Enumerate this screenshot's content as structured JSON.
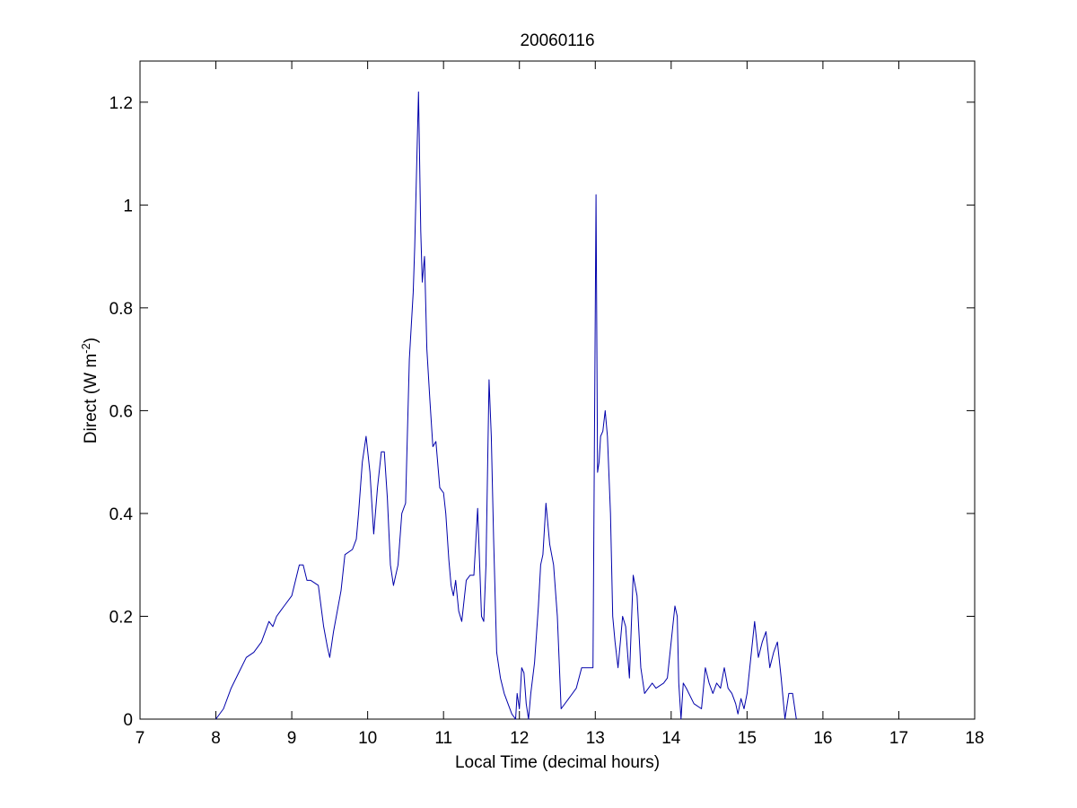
{
  "chart_data": {
    "type": "line",
    "title": "20060116",
    "xlabel": "Local Time (decimal hours)",
    "ylabel_parts": {
      "before": "Direct (W m",
      "sup": "-2",
      "after": ")"
    },
    "xlim": [
      7,
      18
    ],
    "ylim": [
      0,
      1.28
    ],
    "xticks": [
      7,
      8,
      9,
      10,
      11,
      12,
      13,
      14,
      15,
      16,
      17,
      18
    ],
    "yticks": [
      0,
      0.2,
      0.4,
      0.6,
      0.8,
      1,
      1.2
    ],
    "ytick_labels": [
      "0",
      "0.2",
      "0.4",
      "0.6",
      "0.8",
      "1",
      "1.2"
    ],
    "grid": false,
    "line_color": "#0000aa",
    "series": [
      {
        "x": [
          8.0,
          8.1,
          8.2,
          8.3,
          8.4,
          8.5,
          8.6,
          8.7,
          8.75,
          8.8,
          8.85,
          8.9,
          9.0,
          9.1,
          9.15,
          9.2,
          9.25,
          9.35,
          9.42,
          9.47,
          9.5,
          9.55,
          9.6,
          9.65,
          9.7,
          9.8,
          9.85,
          9.88,
          9.93,
          9.98,
          10.03,
          10.08,
          10.13,
          10.18,
          10.22,
          10.26,
          10.3,
          10.34,
          10.4,
          10.45,
          10.5,
          10.55,
          10.6,
          10.62,
          10.65,
          10.67,
          10.7,
          10.72,
          10.75,
          10.78,
          10.82,
          10.86,
          10.9,
          10.95,
          11.0,
          11.03,
          11.07,
          11.1,
          11.13,
          11.16,
          11.2,
          11.24,
          11.27,
          11.3,
          11.35,
          11.4,
          11.45,
          11.5,
          11.53,
          11.56,
          11.6,
          11.63,
          11.66,
          11.7,
          11.75,
          11.8,
          11.85,
          11.9,
          11.95,
          11.97,
          12.0,
          12.03,
          12.06,
          12.09,
          12.12,
          12.15,
          12.2,
          12.25,
          12.28,
          12.31,
          12.35,
          12.4,
          12.45,
          12.5,
          12.55,
          12.65,
          12.75,
          12.82,
          12.9,
          12.97,
          13.01,
          13.03,
          13.05,
          13.07,
          13.1,
          13.13,
          13.16,
          13.2,
          13.23,
          13.26,
          13.3,
          13.33,
          13.36,
          13.4,
          13.45,
          13.5,
          13.55,
          13.6,
          13.65,
          13.7,
          13.75,
          13.8,
          13.9,
          13.95,
          14.0,
          14.05,
          14.08,
          14.1,
          14.13,
          14.16,
          14.2,
          14.3,
          14.4,
          14.45,
          14.5,
          14.55,
          14.6,
          14.65,
          14.7,
          14.75,
          14.8,
          14.85,
          14.88,
          14.92,
          14.96,
          15.0,
          15.05,
          15.1,
          15.15,
          15.2,
          15.25,
          15.3,
          15.35,
          15.4,
          15.45,
          15.5,
          15.55,
          15.6,
          15.65
        ],
        "y": [
          0.0,
          0.02,
          0.06,
          0.09,
          0.12,
          0.13,
          0.15,
          0.19,
          0.18,
          0.2,
          0.21,
          0.22,
          0.24,
          0.3,
          0.3,
          0.27,
          0.27,
          0.26,
          0.18,
          0.14,
          0.12,
          0.17,
          0.21,
          0.25,
          0.32,
          0.33,
          0.35,
          0.4,
          0.5,
          0.55,
          0.48,
          0.36,
          0.45,
          0.52,
          0.52,
          0.43,
          0.3,
          0.26,
          0.3,
          0.4,
          0.42,
          0.7,
          0.83,
          0.92,
          1.1,
          1.22,
          0.95,
          0.85,
          0.9,
          0.72,
          0.62,
          0.53,
          0.54,
          0.45,
          0.44,
          0.4,
          0.31,
          0.26,
          0.24,
          0.27,
          0.21,
          0.19,
          0.23,
          0.27,
          0.28,
          0.28,
          0.41,
          0.2,
          0.19,
          0.3,
          0.66,
          0.55,
          0.35,
          0.13,
          0.08,
          0.05,
          0.03,
          0.01,
          0.0,
          0.05,
          0.02,
          0.1,
          0.09,
          0.03,
          0.0,
          0.05,
          0.11,
          0.22,
          0.3,
          0.32,
          0.42,
          0.34,
          0.3,
          0.2,
          0.02,
          0.04,
          0.06,
          0.1,
          0.1,
          0.1,
          1.02,
          0.48,
          0.5,
          0.55,
          0.56,
          0.6,
          0.55,
          0.4,
          0.2,
          0.15,
          0.1,
          0.15,
          0.2,
          0.18,
          0.08,
          0.28,
          0.24,
          0.1,
          0.05,
          0.06,
          0.07,
          0.06,
          0.07,
          0.08,
          0.15,
          0.22,
          0.2,
          0.07,
          0.0,
          0.07,
          0.06,
          0.03,
          0.02,
          0.1,
          0.07,
          0.05,
          0.07,
          0.06,
          0.1,
          0.06,
          0.05,
          0.03,
          0.01,
          0.04,
          0.02,
          0.05,
          0.12,
          0.19,
          0.12,
          0.15,
          0.17,
          0.1,
          0.13,
          0.15,
          0.08,
          0.0,
          0.05,
          0.05,
          0.0
        ]
      }
    ]
  }
}
